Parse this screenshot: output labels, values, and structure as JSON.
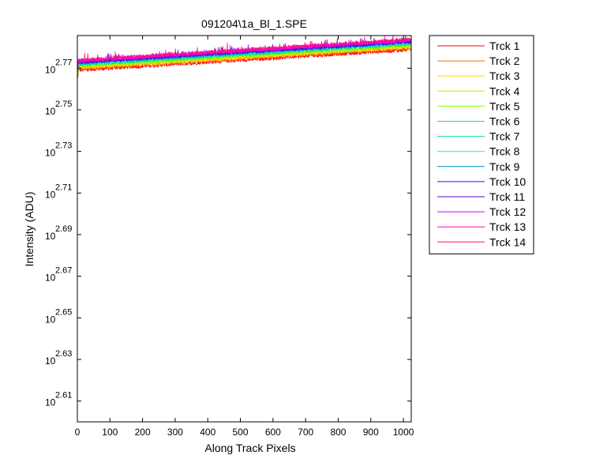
{
  "chart_data": {
    "type": "line",
    "title": "091204\\1a_Bl_1.SPE",
    "xlabel": "Along Track Pixels",
    "ylabel": "Intensity (ADU)",
    "xlim": [
      0,
      1024
    ],
    "ylim_log10": [
      2.6,
      2.7857
    ],
    "y_scale": "log",
    "xticks": [
      0,
      100,
      200,
      300,
      400,
      500,
      600,
      700,
      800,
      900,
      1000
    ],
    "yticks": [
      {
        "base": "10",
        "exp": "2.61",
        "value": 2.61
      },
      {
        "base": "10",
        "exp": "2.63",
        "value": 2.63
      },
      {
        "base": "10",
        "exp": "2.65",
        "value": 2.65
      },
      {
        "base": "10",
        "exp": "2.67",
        "value": 2.67
      },
      {
        "base": "10",
        "exp": "2.69",
        "value": 2.69
      },
      {
        "base": "10",
        "exp": "2.71",
        "value": 2.71
      },
      {
        "base": "10",
        "exp": "2.73",
        "value": 2.73
      },
      {
        "base": "10",
        "exp": "2.75",
        "value": 2.75
      },
      {
        "base": "10",
        "exp": "2.77",
        "value": 2.77
      }
    ],
    "legend_position": "outside-right",
    "grid": false,
    "series": [
      {
        "name": "Trck 1",
        "color": "#ff0000",
        "log10_start": 2.769,
        "log10_end": 2.779
      },
      {
        "name": "Trck 2",
        "color": "#ff6a00",
        "log10_start": 2.7697,
        "log10_end": 2.7797
      },
      {
        "name": "Trck 3",
        "color": "#ffd400",
        "log10_start": 2.7702,
        "log10_end": 2.7802
      },
      {
        "name": "Trck 4",
        "color": "#c8e600",
        "log10_start": 2.7707,
        "log10_end": 2.7807
      },
      {
        "name": "Trck 5",
        "color": "#7fff00",
        "log10_start": 2.7712,
        "log10_end": 2.7812
      },
      {
        "name": "Trck 6",
        "color": "#22e84a",
        "log10_start": 2.7716,
        "log10_end": 2.7816
      },
      {
        "name": "Trck 7",
        "color": "#00e0a0",
        "log10_start": 2.7719,
        "log10_end": 2.7819
      },
      {
        "name": "Trck 8",
        "color": "#20e0d0",
        "log10_start": 2.7722,
        "log10_end": 2.7822
      },
      {
        "name": "Trck 9",
        "color": "#0090d0",
        "log10_start": 2.7725,
        "log10_end": 2.7825
      },
      {
        "name": "Trck 10",
        "color": "#0020ff",
        "log10_start": 2.7728,
        "log10_end": 2.7828
      },
      {
        "name": "Trck 11",
        "color": "#5a00cc",
        "log10_start": 2.773,
        "log10_end": 2.783
      },
      {
        "name": "Trck 12",
        "color": "#cc00ff",
        "log10_start": 2.7733,
        "log10_end": 2.7833
      },
      {
        "name": "Trck 13",
        "color": "#ff00cc",
        "log10_start": 2.7736,
        "log10_end": 2.7836
      },
      {
        "name": "Trck 14",
        "color": "#ff1080",
        "log10_start": 2.7739,
        "log10_end": 2.7839
      }
    ]
  }
}
